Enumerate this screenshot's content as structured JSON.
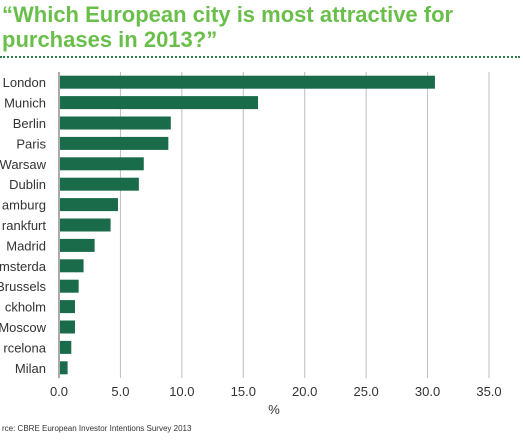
{
  "chart_data": {
    "type": "bar",
    "orientation": "horizontal",
    "title": "“Which European city is most attractive for purchases in 2013?”",
    "categories": [
      "London",
      "Munich",
      "Berlin",
      "Paris",
      "Warsaw",
      "Dublin",
      "amburg",
      "rankfurt",
      "Madrid",
      "msterda",
      "Brussels",
      "ckholm",
      "Moscow",
      "rcelona",
      "Milan"
    ],
    "values": [
      30.6,
      16.2,
      9.1,
      8.9,
      6.9,
      6.5,
      4.8,
      4.2,
      2.9,
      2.0,
      1.6,
      1.3,
      1.3,
      1.0,
      0.7
    ],
    "xlabel": "%",
    "ylabel": "",
    "xlim": [
      0,
      35
    ],
    "xticks": [
      "0.0",
      "5.0",
      "10.0",
      "15.0",
      "20.0",
      "25.0",
      "30.0",
      "35.0"
    ],
    "grid": "vertical",
    "bar_color": "#1a6b4a",
    "source": "rce: CBRE European Investor Intentions Survey 2013"
  },
  "colors": {
    "title": "#6abf4b",
    "bar": "#1a6b4a",
    "grid": "#bdbdbd"
  }
}
